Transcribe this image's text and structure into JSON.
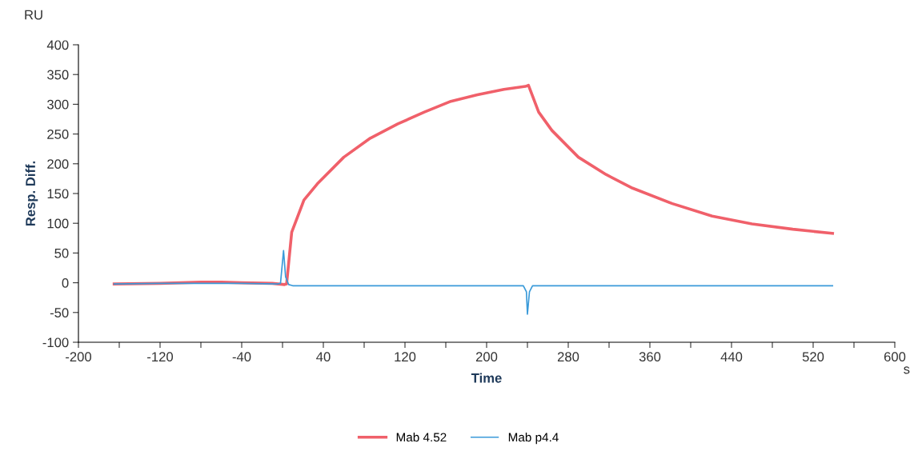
{
  "chart_data": {
    "type": "line",
    "xlabel": "Time",
    "ylabel": "Resp. Diff.",
    "annotations": [
      "RU",
      "s"
    ],
    "xlim": [
      -200,
      600
    ],
    "ylim": [
      -100,
      400
    ],
    "xticks": [
      -200,
      {
        "value": -160,
        "label": null
      },
      -120,
      {
        "value": -80,
        "label": null
      },
      -40,
      {
        "value": 0,
        "label": null
      },
      40,
      {
        "value": 80,
        "label": null
      },
      120,
      {
        "value": 160,
        "label": null
      },
      200,
      {
        "value": 240,
        "label": null
      },
      280,
      {
        "value": 320,
        "label": null
      },
      360,
      {
        "value": 400,
        "label": null
      },
      440,
      {
        "value": 480,
        "label": null
      },
      520,
      {
        "value": 560,
        "label": null
      },
      600
    ],
    "yticks": [
      -100,
      -50,
      0,
      50,
      100,
      150,
      200,
      250,
      300,
      350,
      400
    ],
    "grid": false,
    "legend": "bottom",
    "line_style": "solid",
    "marker": "none",
    "series": [
      {
        "name": "Mab 4.52",
        "color": "#f0606a",
        "x": [
          -165,
          -120,
          -80,
          -60,
          -40,
          -10,
          2,
          4,
          9,
          21,
          34,
          60,
          86,
          113,
          139,
          165,
          191,
          217,
          238,
          241,
          251,
          264,
          290,
          317,
          343,
          382,
          421,
          460,
          500,
          539
        ],
        "values": [
          -2,
          -1,
          1,
          1,
          0,
          -1,
          -3,
          -2,
          85,
          139,
          166,
          211,
          243,
          267,
          287,
          305,
          316,
          325,
          330,
          332,
          287,
          256,
          211,
          182,
          159,
          133,
          112,
          99,
          90,
          83
        ]
      },
      {
        "name": "Mab p4.4",
        "color": "#3a9ad9",
        "x": [
          -165,
          -120,
          -80,
          -40,
          -5,
          -2,
          1,
          3,
          6,
          10,
          60,
          120,
          180,
          236,
          239,
          240,
          242,
          245,
          300,
          360,
          420,
          480,
          539
        ],
        "values": [
          -2,
          -1,
          -1,
          -1,
          -2,
          -1,
          54,
          10,
          -3,
          -5,
          -5,
          -5,
          -5,
          -5,
          -15,
          -53,
          -15,
          -5,
          -5,
          -5,
          -5,
          -5,
          -5
        ]
      }
    ]
  }
}
